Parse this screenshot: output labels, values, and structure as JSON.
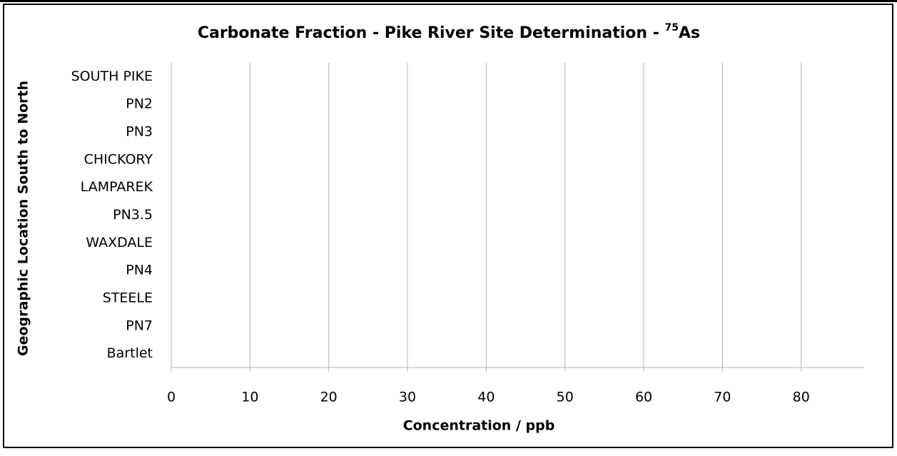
{
  "chart_data": {
    "type": "bar",
    "orientation": "horizontal",
    "title": {
      "text": "Carbonate Fraction - Pike River Site Determination -",
      "isotope": "75",
      "element": "As"
    },
    "x_label": "Concentration / ppb",
    "y_label": "Geographic Location South to North",
    "categories": [
      "SOUTH PIKE",
      "PN2",
      "PN3",
      "CHICKORY",
      "LAMPAREK",
      "PN3.5",
      "WAXDALE",
      "PN4",
      "STEELE",
      "PN7",
      "Bartlet"
    ],
    "xlim": [
      0,
      88
    ],
    "xticks": [
      0,
      10,
      20,
      30,
      40,
      50,
      60,
      70,
      80
    ],
    "grid": true
  }
}
